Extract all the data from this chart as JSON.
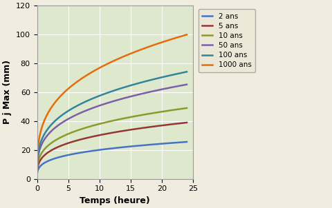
{
  "title": "",
  "xlabel": "Temps (heure)",
  "ylabel": "P j Max (mm)",
  "xlim": [
    0,
    25
  ],
  "ylim": [
    0,
    120
  ],
  "xticks": [
    0,
    5,
    10,
    15,
    20,
    25
  ],
  "yticks": [
    0,
    20,
    40,
    60,
    80,
    100,
    120
  ],
  "plot_bg_color": "#dde8cc",
  "fig_bg_color": "#f0ece0",
  "series": [
    {
      "label": "2 ans",
      "color": "#4472c4",
      "a": 10.5,
      "b": 0.28
    },
    {
      "label": "5 ans",
      "color": "#943634",
      "a": 15.5,
      "b": 0.29
    },
    {
      "label": "10 ans",
      "color": "#8a9a2c",
      "a": 19.5,
      "b": 0.29
    },
    {
      "label": "50 ans",
      "color": "#7b5ea7",
      "a": 26.0,
      "b": 0.29
    },
    {
      "label": "100 ans",
      "color": "#31849b",
      "a": 29.5,
      "b": 0.29
    },
    {
      "label": "1000 ans",
      "color": "#e46c0a",
      "a": 38.5,
      "b": 0.3
    }
  ],
  "figsize": [
    4.8,
    3.02
  ],
  "dpi": 100
}
